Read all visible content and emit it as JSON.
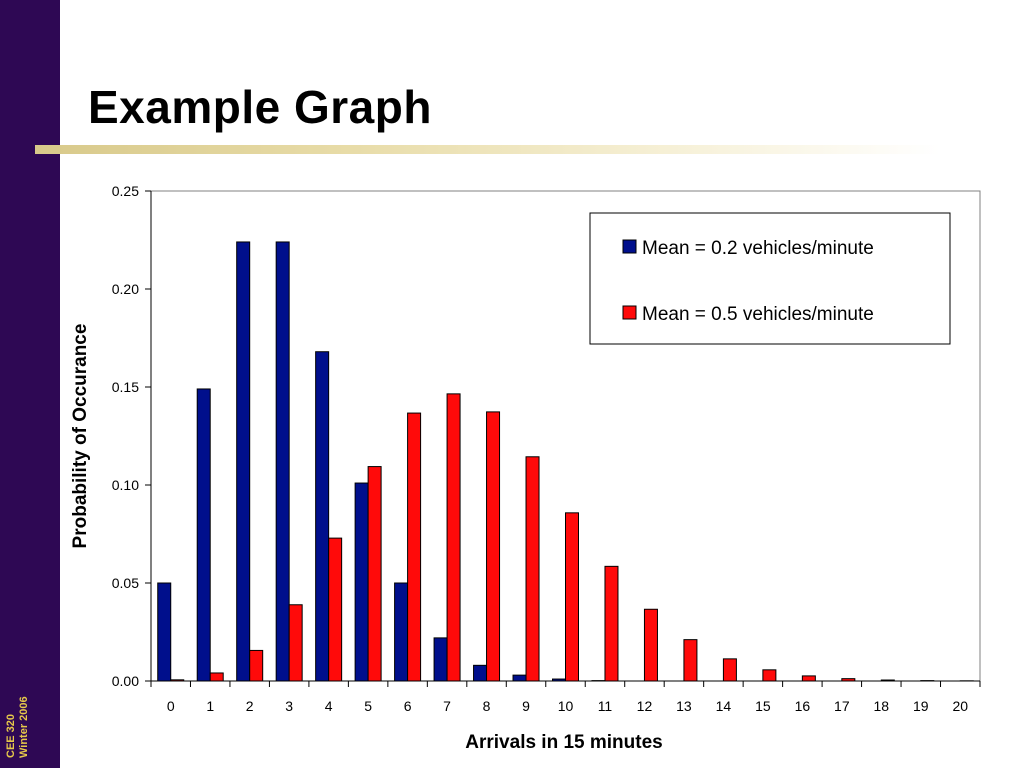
{
  "slide": {
    "title": "Example Graph",
    "footer_line1": "CEE 320",
    "footer_line2": "Winter 2006"
  },
  "colors": {
    "side_band": "#2e0854",
    "footer_text": "#e6c84a",
    "series_1": "#000f8c",
    "series_2": "#ff0a0a"
  },
  "chart_data": {
    "type": "bar",
    "xlabel": "Arrivals in 15 minutes",
    "ylabel": "Probability of Occurance",
    "categories": [
      "0",
      "1",
      "2",
      "3",
      "4",
      "5",
      "6",
      "7",
      "8",
      "9",
      "10",
      "11",
      "12",
      "13",
      "14",
      "15",
      "16",
      "17",
      "18",
      "19",
      "20"
    ],
    "ylim": [
      0,
      0.25
    ],
    "yticks": [
      "0.00",
      "0.05",
      "0.10",
      "0.15",
      "0.20",
      "0.25"
    ],
    "grid": false,
    "legend_position": "top-right",
    "series": [
      {
        "name": "Mean = 0.2 vehicles/minute",
        "color": "#000f8c",
        "values": [
          0.05,
          0.149,
          0.224,
          0.224,
          0.168,
          0.101,
          0.05,
          0.022,
          0.008,
          0.003,
          0.001,
          0.0002,
          0,
          0,
          0,
          0,
          0,
          0,
          0,
          0,
          0
        ]
      },
      {
        "name": "Mean = 0.5 vehicles/minute",
        "color": "#ff0a0a",
        "values": [
          0.0006,
          0.0041,
          0.0156,
          0.0389,
          0.0729,
          0.1094,
          0.1367,
          0.1465,
          0.1373,
          0.1144,
          0.0858,
          0.0585,
          0.0366,
          0.0211,
          0.0113,
          0.0057,
          0.0026,
          0.0012,
          0.0005,
          0.0002,
          0.0001
        ]
      }
    ]
  }
}
